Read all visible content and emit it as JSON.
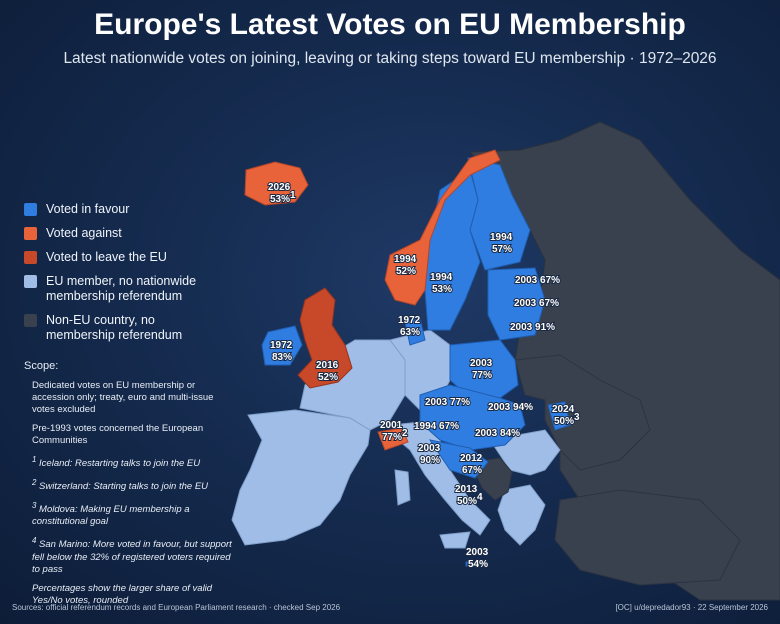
{
  "title": "Europe's Latest Votes on EU Membership",
  "subtitle": "Latest nationwide votes on joining, leaving or taking steps toward EU membership · 1972–2026",
  "colors": {
    "favour": "#2f7de1",
    "against": "#e8623a",
    "leave": "#c7492a",
    "member_no_ref": "#9fbde6",
    "non_eu": "#39414f",
    "background": "#152b4f"
  },
  "legend": [
    {
      "key": "favour",
      "label": "Voted in favour"
    },
    {
      "key": "against",
      "label": "Voted against"
    },
    {
      "key": "leave",
      "label": "Voted to leave the EU"
    },
    {
      "key": "member_no_ref",
      "label": "EU member, no nationwide membership referendum"
    },
    {
      "key": "non_eu",
      "label": "Non-EU country, no membership referendum"
    }
  ],
  "scope": {
    "heading": "Scope:",
    "p1": "Dedicated votes on EU membership or accession only; treaty, euro and multi-issue votes excluded",
    "p2": "Pre-1993 votes concerned the European Communities",
    "footnotes": [
      {
        "num": "1",
        "text": "Iceland: Restarting talks to join the EU"
      },
      {
        "num": "2",
        "text": "Switzerland: Starting talks to join the EU"
      },
      {
        "num": "3",
        "text": "Moldova: Making EU membership a constitutional goal"
      },
      {
        "num": "4",
        "text": "San Marino: More voted in favour, but support fell below the 32% of registered voters required to pass"
      }
    ],
    "note": "Percentages show the larger share of valid Yes/No votes, rounded"
  },
  "votes": [
    {
      "country": "Iceland",
      "year": "2026",
      "pct": "53",
      "note": "1",
      "result": "against"
    },
    {
      "country": "Norway",
      "year": "1994",
      "pct": "52",
      "note": "",
      "result": "against"
    },
    {
      "country": "Sweden",
      "year": "1994",
      "pct": "53",
      "note": "",
      "result": "favour"
    },
    {
      "country": "Finland",
      "year": "1994",
      "pct": "57",
      "note": "",
      "result": "favour"
    },
    {
      "country": "Estonia",
      "year": "2003",
      "pct": "67",
      "note": "",
      "result": "favour"
    },
    {
      "country": "Latvia",
      "year": "2003",
      "pct": "67",
      "note": "",
      "result": "favour"
    },
    {
      "country": "Lithuania",
      "year": "2003",
      "pct": "91",
      "note": "",
      "result": "favour"
    },
    {
      "country": "Denmark",
      "year": "1972",
      "pct": "63",
      "note": "",
      "result": "favour"
    },
    {
      "country": "Ireland",
      "year": "1972",
      "pct": "83",
      "note": "",
      "result": "favour"
    },
    {
      "country": "United Kingdom",
      "year": "2016",
      "pct": "52",
      "note": "",
      "result": "leave"
    },
    {
      "country": "Poland",
      "year": "2003",
      "pct": "77",
      "note": "",
      "result": "favour"
    },
    {
      "country": "Czechia",
      "year": "2003",
      "pct": "77",
      "note": "",
      "result": "favour"
    },
    {
      "country": "Slovakia",
      "year": "2003",
      "pct": "94",
      "note": "",
      "result": "favour"
    },
    {
      "country": "Moldova",
      "year": "2024",
      "pct": "50",
      "note": "3",
      "result": "favour"
    },
    {
      "country": "Switzerland",
      "year": "2001",
      "pct": "77",
      "note": "2",
      "result": "against"
    },
    {
      "country": "Austria",
      "year": "1994",
      "pct": "67",
      "note": "",
      "result": "favour"
    },
    {
      "country": "Hungary",
      "year": "2003",
      "pct": "84",
      "note": "",
      "result": "favour"
    },
    {
      "country": "Slovenia",
      "year": "2003",
      "pct": "90",
      "note": "",
      "result": "favour"
    },
    {
      "country": "Croatia",
      "year": "2012",
      "pct": "67",
      "note": "",
      "result": "favour"
    },
    {
      "country": "San Marino",
      "year": "2013",
      "pct": "50",
      "note": "4",
      "result": "against"
    },
    {
      "country": "Malta",
      "year": "2003",
      "pct": "54",
      "note": "",
      "result": "favour"
    }
  ],
  "footer": {
    "sources": "Sources: official referendum records and European Parliament research · checked Sep 2026",
    "credit": "[OC] u/depredador93 · 22 September 2026"
  }
}
